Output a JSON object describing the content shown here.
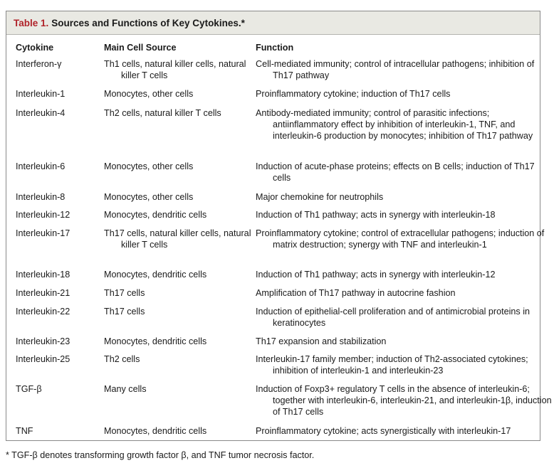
{
  "table": {
    "title_number": "Table 1.",
    "title_text": "Sources and Functions of Key Cytokines.*",
    "headers": [
      "Cytokine",
      "Main Cell Source",
      "Function"
    ],
    "rows": [
      {
        "cytokine": "Interferon-γ",
        "source": "Th1 cells, natural killer cells, natural killer T cells",
        "function": "Cell-mediated immunity; control of intracellular pathogens; inhibition of Th17 pathway"
      },
      {
        "cytokine": "Interleukin-1",
        "source": "Monocytes, other cells",
        "function": "Proinflammatory cytokine; induction of Th17 cells"
      },
      {
        "cytokine": "Interleukin-4",
        "source": "Th2 cells, natural killer T cells",
        "function": "Antibody-mediated immunity; control of parasitic infections; antiinflammatory effect by inhibition of interleukin-1, TNF, and interleukin-6 production by monocytes; inhibition of Th17 pathway"
      },
      {
        "cytokine": "Interleukin-6",
        "source": "Monocytes, other cells",
        "function": "Induction of acute-phase proteins; effects on B cells; induction of Th17 cells"
      },
      {
        "cytokine": "Interleukin-8",
        "source": "Monocytes, other cells",
        "function": "Major chemokine for neutrophils"
      },
      {
        "cytokine": "Interleukin-12",
        "source": "Monocytes, dendritic cells",
        "function": "Induction of Th1 pathway; acts in synergy with interleukin-18"
      },
      {
        "cytokine": "Interleukin-17",
        "source": "Th17 cells, natural killer cells, natural killer T cells",
        "function": "Proinflammatory cytokine; control of extracellular pathogens; induction of matrix destruction; synergy with TNF and interleukin-1"
      },
      {
        "cytokine": "Interleukin-18",
        "source": "Monocytes, dendritic cells",
        "function": "Induction of Th1 pathway; acts in synergy with interleukin-12"
      },
      {
        "cytokine": "Interleukin-21",
        "source": "Th17 cells",
        "function": "Amplification of Th17 pathway in autocrine fashion"
      },
      {
        "cytokine": "Interleukin-22",
        "source": "Th17 cells",
        "function": "Induction of epithelial-cell proliferation and of antimicrobial proteins in keratinocytes"
      },
      {
        "cytokine": "Interleukin-23",
        "source": "Monocytes, dendritic cells",
        "function": "Th17 expansion and stabilization"
      },
      {
        "cytokine": "Interleukin-25",
        "source": "Th2 cells",
        "function": "Interleukin-17 family member; induction of Th2-associated cytokines; inhibition of interleukin-1 and interleukin-23"
      },
      {
        "cytokine": "TGF-β",
        "source": "Many cells",
        "function": "Induction of Foxp3+ regulatory T cells in the absence of interleukin-6; together with interleukin-6, interleukin-21, and interleukin-1β, induction of Th17 cells"
      },
      {
        "cytokine": "TNF",
        "source": "Monocytes, dendritic cells",
        "function": "Proinflammatory cytokine; acts synergistically with interleukin-17"
      }
    ],
    "footnote": "* TGF-β denotes transforming growth factor β, and TNF tumor necrosis factor.",
    "colors": {
      "title_number": "#b0232a",
      "title_bar_bg": "#e9e9e3",
      "border": "#8a8a8a"
    }
  }
}
